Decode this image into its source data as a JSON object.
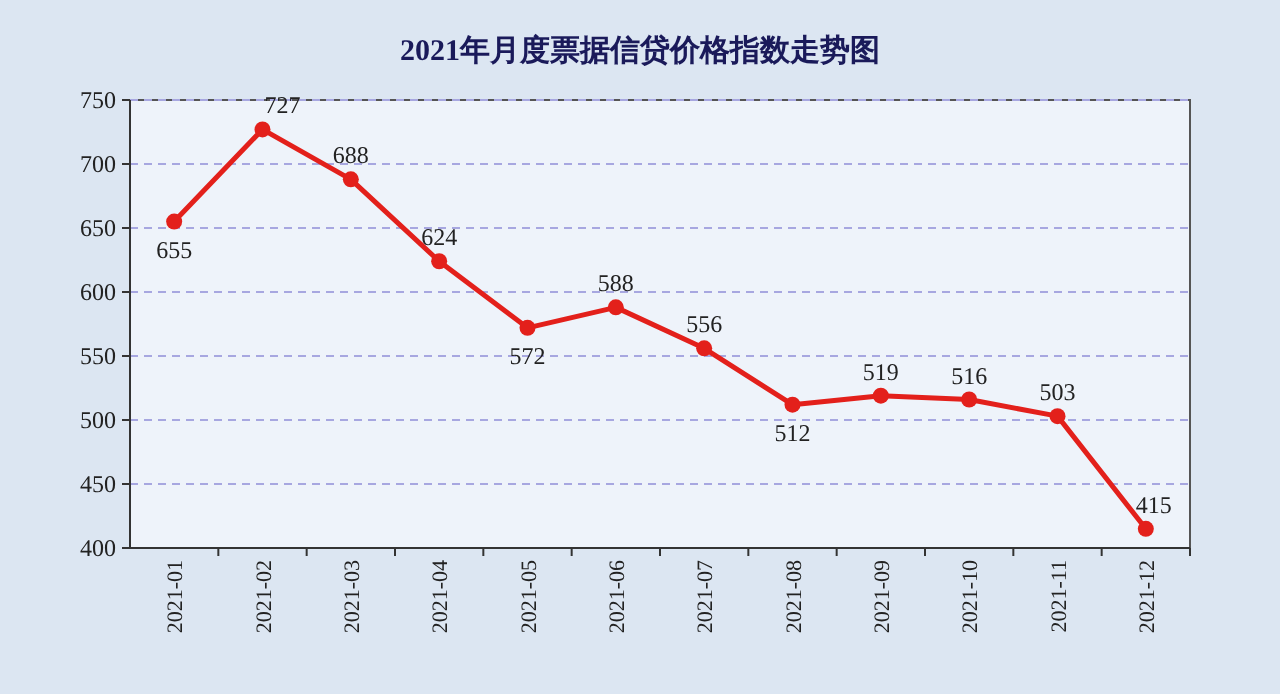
{
  "chart_data": {
    "type": "line",
    "title": "2021年月度票据信贷价格指数走势图",
    "categories": [
      "2021-01",
      "2021-02",
      "2021-03",
      "2021-04",
      "2021-05",
      "2021-06",
      "2021-07",
      "2021-08",
      "2021-09",
      "2021-10",
      "2021-11",
      "2021-12"
    ],
    "series": [
      {
        "color": "#e3201b",
        "values": [
          655,
          727,
          688,
          624,
          572,
          588,
          556,
          512,
          519,
          516,
          503,
          415
        ]
      }
    ],
    "ylim": [
      400,
      750
    ],
    "yticks": [
      400,
      450,
      500,
      550,
      600,
      650,
      700,
      750
    ],
    "grid": "y",
    "marker": "circle",
    "line_style": "solid",
    "data_labels": true
  }
}
